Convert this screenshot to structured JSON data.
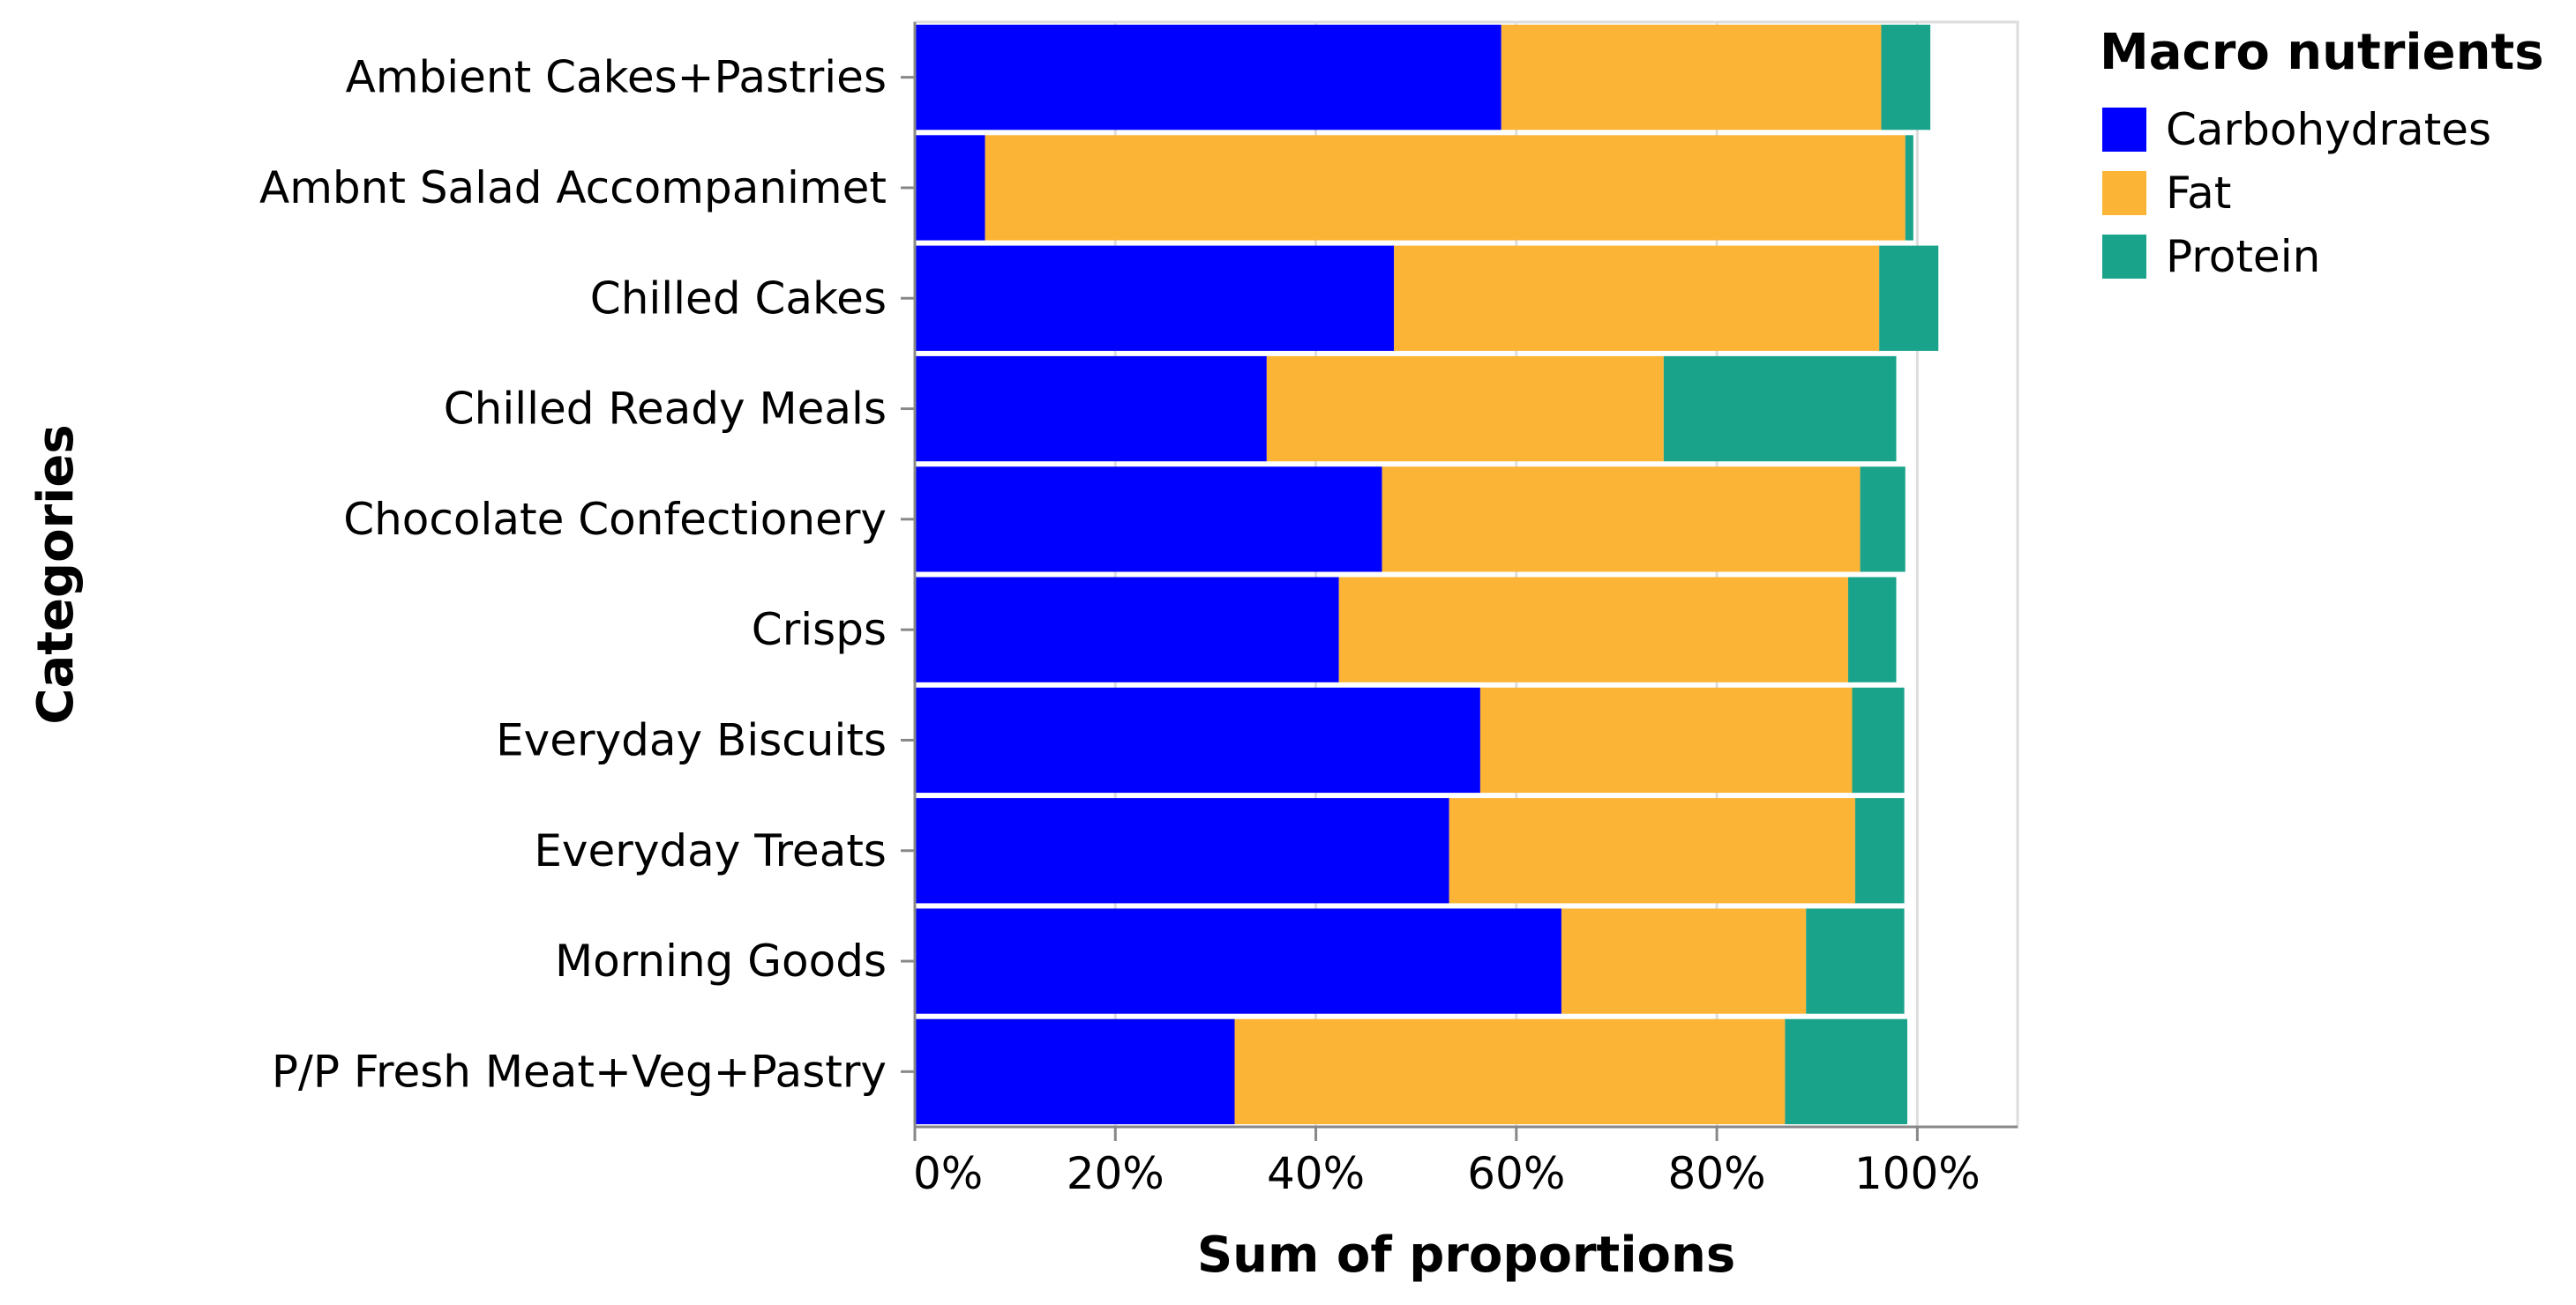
{
  "chart_data": {
    "type": "bar",
    "orientation": "horizontal",
    "stacked": true,
    "categories": [
      "Ambient Cakes+Pastries",
      "Ambnt Salad Accompanimet",
      "Chilled Cakes",
      "Chilled Ready Meals",
      "Chocolate Confectionery",
      "Crisps",
      "Everyday Biscuits",
      "Everyday Treats",
      "Morning Goods",
      "P/P Fresh Meat+Veg+Pastry"
    ],
    "series": [
      {
        "name": "Carbohydrates",
        "color": "#0000ff",
        "values": [
          0.585,
          0.07,
          0.478,
          0.351,
          0.466,
          0.423,
          0.564,
          0.533,
          0.645,
          0.319
        ]
      },
      {
        "name": "Fat",
        "color": "#fbb436",
        "values": [
          0.379,
          0.918,
          0.484,
          0.396,
          0.477,
          0.508,
          0.371,
          0.405,
          0.244,
          0.549
        ]
      },
      {
        "name": "Protein",
        "color": "#1aa38b",
        "values": [
          0.049,
          0.008,
          0.059,
          0.232,
          0.045,
          0.048,
          0.052,
          0.049,
          0.098,
          0.122
        ]
      }
    ],
    "xlabel": "Sum of proportions",
    "ylabel": "Categories",
    "xlim": [
      0,
      1.1
    ],
    "xticks": [
      0,
      0.2,
      0.4,
      0.6,
      0.8,
      1.0
    ],
    "xtick_labels": [
      "0%",
      "20%",
      "40%",
      "60%",
      "80%",
      "100%"
    ],
    "grid": true,
    "legend": {
      "title": "Macro nutrients",
      "position": "top-right",
      "items": [
        "Carbohydrates",
        "Fat",
        "Protein"
      ]
    }
  }
}
